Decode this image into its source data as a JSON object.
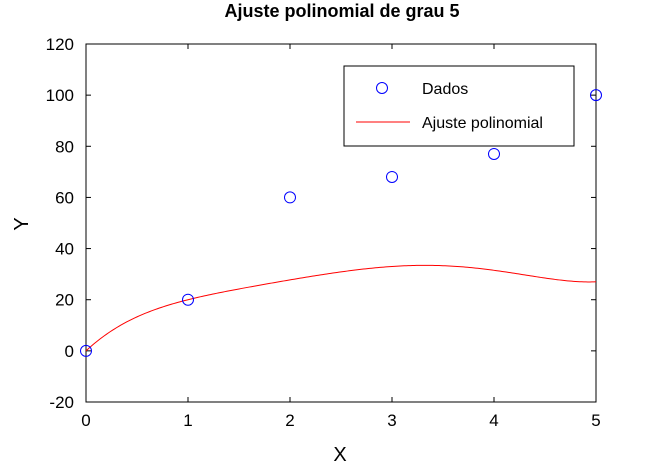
{
  "chart_data": {
    "type": "scatter",
    "title": "Ajuste polinomial de grau 5",
    "xlabel": "X",
    "ylabel": "Y",
    "xlim": [
      0,
      5
    ],
    "ylim": [
      -20,
      120
    ],
    "xticks": [
      0,
      1,
      2,
      3,
      4,
      5
    ],
    "yticks": [
      -20,
      0,
      20,
      40,
      60,
      80,
      100,
      120
    ],
    "grid": false,
    "legend_position": "top-right",
    "series": [
      {
        "name": "Dados",
        "kind": "marker",
        "marker": "circle",
        "color": "#0000ff",
        "x": [
          0,
          1,
          2,
          3,
          4,
          5
        ],
        "y": [
          0,
          20,
          60,
          68,
          77,
          100
        ]
      },
      {
        "name": "Ajuste polinomial",
        "kind": "line",
        "color": "#ff0000",
        "degree": 5,
        "coefficients_descending": [
          0.1833333,
          -2.4166667,
          11.5416667,
          -26.5833333,
          37.275,
          0
        ]
      }
    ]
  }
}
